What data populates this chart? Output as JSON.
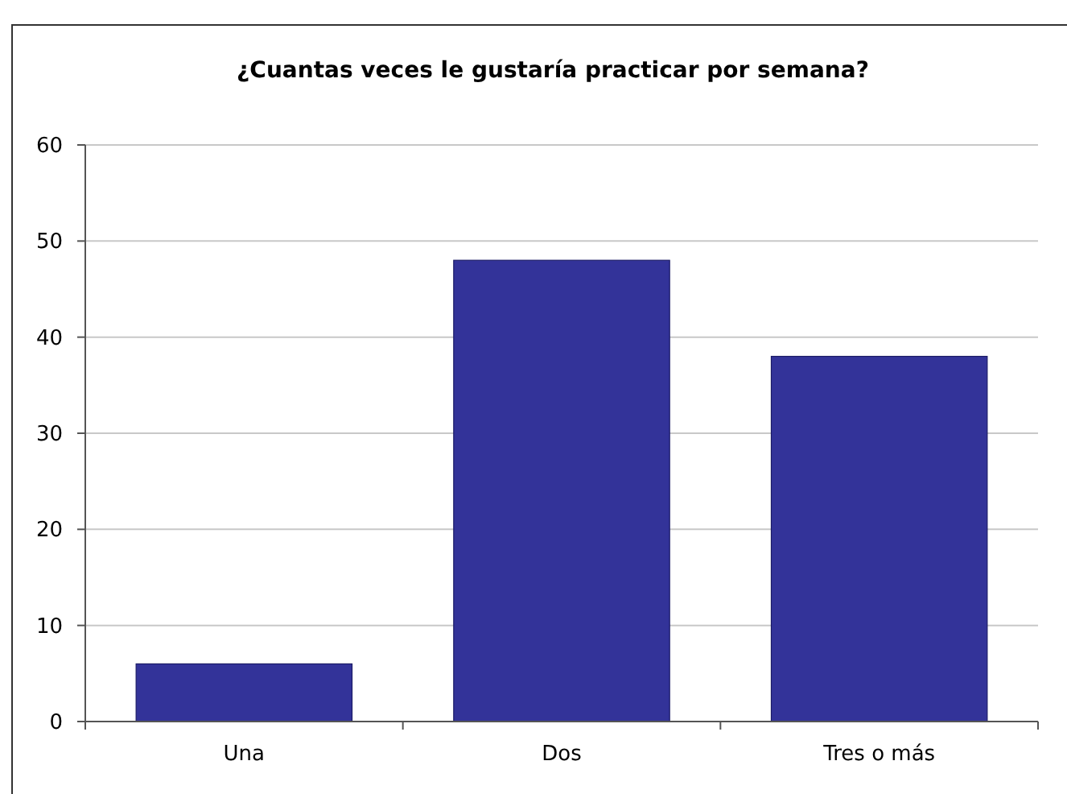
{
  "chart_data": {
    "type": "bar",
    "title": "¿Cuantas veces le gustaría practicar por semana?",
    "categories": [
      "Una",
      "Dos",
      "Tres o más"
    ],
    "values": [
      6,
      48,
      38
    ],
    "color": "#333399",
    "ylim": [
      0,
      60
    ],
    "yticks": [
      0,
      10,
      20,
      30,
      40,
      50,
      60
    ],
    "grid": "y"
  }
}
